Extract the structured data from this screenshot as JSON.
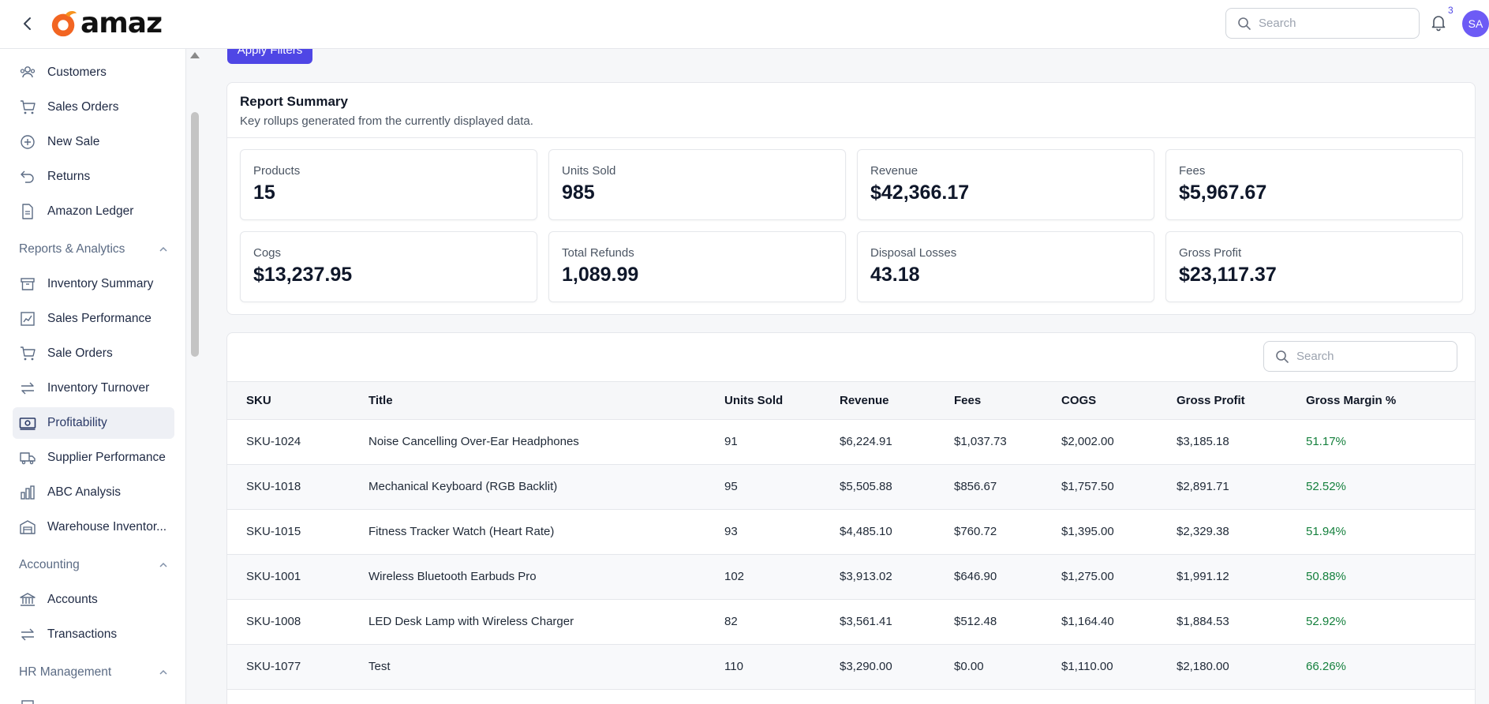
{
  "header": {
    "logo_text": "amaz",
    "search_placeholder": "Search",
    "notification_count": "3",
    "avatar_initials": "SA"
  },
  "sidebar": {
    "items": [
      {
        "label": "Customers",
        "icon": "users-icon"
      },
      {
        "label": "Sales Orders",
        "icon": "cart-icon"
      },
      {
        "label": "New Sale",
        "icon": "plus-circle-icon"
      },
      {
        "label": "Returns",
        "icon": "return-arrow-icon"
      },
      {
        "label": "Amazon Ledger",
        "icon": "document-icon"
      }
    ],
    "sections": [
      {
        "label": "Reports & Analytics",
        "items": [
          {
            "label": "Inventory Summary",
            "icon": "archive-icon"
          },
          {
            "label": "Sales Performance",
            "icon": "chart-line-icon"
          },
          {
            "label": "Sale Orders",
            "icon": "cart-icon"
          },
          {
            "label": "Inventory Turnover",
            "icon": "swap-arrows-icon"
          },
          {
            "label": "Profitability",
            "icon": "money-icon",
            "active": true
          },
          {
            "label": "Supplier Performance",
            "icon": "truck-icon"
          },
          {
            "label": "ABC Analysis",
            "icon": "bar-chart-icon"
          },
          {
            "label": "Warehouse Inventor...",
            "icon": "warehouse-icon"
          }
        ]
      },
      {
        "label": "Accounting",
        "items": [
          {
            "label": "Accounts",
            "icon": "bank-icon"
          },
          {
            "label": "Transactions",
            "icon": "swap-arrows-icon"
          }
        ]
      },
      {
        "label": "HR Management",
        "items": []
      }
    ]
  },
  "filters": {
    "apply_label": "Apply Filters"
  },
  "summary": {
    "title": "Report Summary",
    "subtitle": "Key rollups generated from the currently displayed data.",
    "stats": [
      {
        "label": "Products",
        "value": "15"
      },
      {
        "label": "Units Sold",
        "value": "985"
      },
      {
        "label": "Revenue",
        "value": "$42,366.17"
      },
      {
        "label": "Fees",
        "value": "$5,967.67"
      },
      {
        "label": "Cogs",
        "value": "$13,237.95"
      },
      {
        "label": "Total Refunds",
        "value": "1,089.99"
      },
      {
        "label": "Disposal Losses",
        "value": "43.18"
      },
      {
        "label": "Gross Profit",
        "value": "$23,117.37"
      }
    ]
  },
  "table": {
    "search_placeholder": "Search",
    "columns": [
      "SKU",
      "Title",
      "Units Sold",
      "Revenue",
      "Fees",
      "COGS",
      "Gross Profit",
      "Gross Margin %"
    ],
    "rows": [
      [
        "SKU-1024",
        "Noise Cancelling Over-Ear Headphones",
        "91",
        "$6,224.91",
        "$1,037.73",
        "$2,002.00",
        "$3,185.18",
        "51.17%"
      ],
      [
        "SKU-1018",
        "Mechanical Keyboard (RGB Backlit)",
        "95",
        "$5,505.88",
        "$856.67",
        "$1,757.50",
        "$2,891.71",
        "52.52%"
      ],
      [
        "SKU-1015",
        "Fitness Tracker Watch (Heart Rate)",
        "93",
        "$4,485.10",
        "$760.72",
        "$1,395.00",
        "$2,329.38",
        "51.94%"
      ],
      [
        "SKU-1001",
        "Wireless Bluetooth Earbuds Pro",
        "102",
        "$3,913.02",
        "$646.90",
        "$1,275.00",
        "$1,991.12",
        "50.88%"
      ],
      [
        "SKU-1008",
        "LED Desk Lamp with Wireless Charger",
        "82",
        "$3,561.41",
        "$512.48",
        "$1,164.40",
        "$1,884.53",
        "52.92%"
      ],
      [
        "SKU-1077",
        "Test",
        "110",
        "$3,290.00",
        "$0.00",
        "$1,110.00",
        "$2,180.00",
        "66.26%"
      ]
    ]
  },
  "colors": {
    "accent": "#4f46e5",
    "avatar": "#6d5bf5",
    "logo_orange": "#f26522",
    "margin_green": "#15803d"
  }
}
